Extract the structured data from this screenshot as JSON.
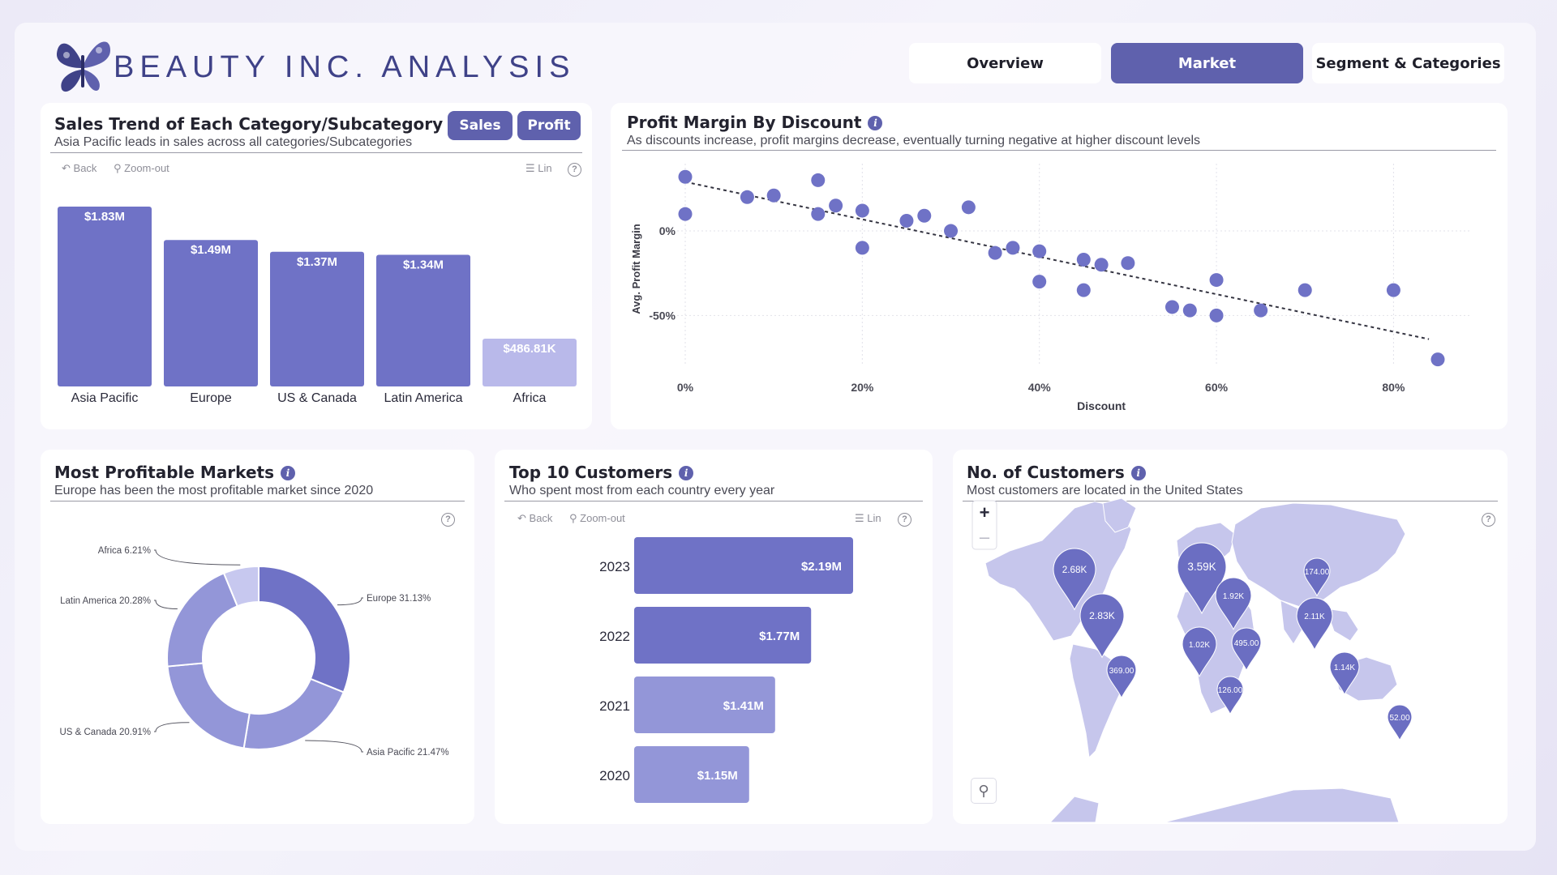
{
  "header": {
    "brand": "BEAUTY INC. ANALYSIS"
  },
  "nav": {
    "tabs": [
      {
        "label": "Overview"
      },
      {
        "label": "Market"
      },
      {
        "label": "Segment & Categories"
      }
    ],
    "active": "Market"
  },
  "sales_trend": {
    "title": "Sales Trend of Each Category/Subcategory",
    "subtitle": "Asia Pacific leads in sales across all categories/Subcategories",
    "toggle_sales": "Sales",
    "toggle_profit": "Profit",
    "back": "Back",
    "zoom_out": "Zoom-out",
    "list": "Lin"
  },
  "profit_margin": {
    "title": "Profit Margin By Discount",
    "subtitle": "As discounts increase, profit margins decrease, eventually turning negative at higher discount levels"
  },
  "profitable_markets": {
    "title": "Most Profitable Markets",
    "subtitle": "Europe has been the most profitable market since 2020"
  },
  "top_customers": {
    "title": "Top 10 Customers",
    "subtitle": "Who spent most from each country every year",
    "back": "Back",
    "zoom_out": "Zoom-out",
    "list": "Lin"
  },
  "num_customers": {
    "title": "No. of Customers",
    "subtitle": "Most customers are located in the United States",
    "zoom_in": "+",
    "zoom_out": "–",
    "pins": [
      {
        "label": "2.68K"
      },
      {
        "label": "2.83K"
      },
      {
        "label": "3.59K"
      },
      {
        "label": "1.92K"
      },
      {
        "label": "174.00"
      },
      {
        "label": "2.11K"
      },
      {
        "label": "1.02K"
      },
      {
        "label": "495.00"
      },
      {
        "label": "1.14K"
      },
      {
        "label": "369.00"
      },
      {
        "label": "126.00"
      },
      {
        "label": "52.00"
      }
    ]
  },
  "colors": {
    "primary": "#6f72c6",
    "light": "#b9b9ea",
    "donut_mid": "#9396d8",
    "donut_light": "#c7c8ef",
    "active_tab": "#5f61ad"
  },
  "chart_data": [
    {
      "id": "sales_by_region",
      "type": "bar",
      "categories": [
        "Asia Pacific",
        "Europe",
        "US & Canada",
        "Latin America",
        "Africa"
      ],
      "values": [
        1830000,
        1490000,
        1370000,
        1340000,
        486810
      ],
      "labels": [
        "$1.83M",
        "$1.49M",
        "$1.37M",
        "$1.34M",
        "$486.81K"
      ],
      "ylim": [
        0,
        1830000
      ]
    },
    {
      "id": "profit_margin_by_discount",
      "type": "scatter",
      "xlabel": "Discount",
      "ylabel": "Avg. Profit Margin",
      "xticks": [
        "0%",
        "20%",
        "40%",
        "60%",
        "80%"
      ],
      "yticks": [
        "0%",
        "-50%"
      ],
      "xlim": [
        0,
        0.85
      ],
      "ylim": [
        -0.8,
        0.35
      ],
      "points": [
        [
          0.0,
          0.32
        ],
        [
          0.0,
          0.1
        ],
        [
          0.07,
          0.2
        ],
        [
          0.1,
          0.21
        ],
        [
          0.15,
          0.3
        ],
        [
          0.15,
          0.1
        ],
        [
          0.17,
          0.15
        ],
        [
          0.2,
          0.12
        ],
        [
          0.2,
          -0.1
        ],
        [
          0.25,
          0.06
        ],
        [
          0.27,
          0.09
        ],
        [
          0.3,
          0.0
        ],
        [
          0.32,
          0.14
        ],
        [
          0.35,
          -0.13
        ],
        [
          0.37,
          -0.1
        ],
        [
          0.4,
          -0.12
        ],
        [
          0.4,
          -0.3
        ],
        [
          0.45,
          -0.17
        ],
        [
          0.45,
          -0.35
        ],
        [
          0.47,
          -0.2
        ],
        [
          0.5,
          -0.19
        ],
        [
          0.55,
          -0.45
        ],
        [
          0.57,
          -0.47
        ],
        [
          0.6,
          -0.29
        ],
        [
          0.6,
          -0.5
        ],
        [
          0.65,
          -0.47
        ],
        [
          0.7,
          -0.35
        ],
        [
          0.8,
          -0.35
        ],
        [
          0.85,
          -0.76
        ]
      ],
      "trendline": [
        [
          0.0,
          0.29
        ],
        [
          0.84,
          -0.64
        ]
      ]
    },
    {
      "id": "profitable_markets",
      "type": "pie",
      "slices": [
        {
          "name": "Europe",
          "label": "Europe 31.13%",
          "value": 31.13
        },
        {
          "name": "Asia Pacific",
          "label": "Asia Pacific 21.47%",
          "value": 21.47
        },
        {
          "name": "US & Canada",
          "label": "US & Canada 20.91%",
          "value": 20.91
        },
        {
          "name": "Latin America",
          "label": "Latin America 20.28%",
          "value": 20.28
        },
        {
          "name": "Africa",
          "label": "Africa 6.21%",
          "value": 6.21
        }
      ]
    },
    {
      "id": "top_customers_by_year",
      "type": "bar",
      "orientation": "horizontal",
      "categories": [
        "2023",
        "2022",
        "2021",
        "2020"
      ],
      "values": [
        2190000,
        1770000,
        1410000,
        1150000
      ],
      "labels": [
        "$2.19M",
        "$1.77M",
        "$1.41M",
        "$1.15M"
      ]
    }
  ]
}
